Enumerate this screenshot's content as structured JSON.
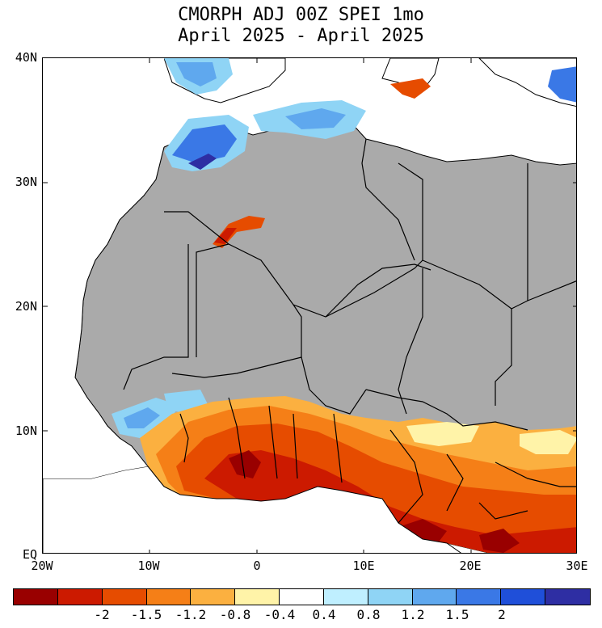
{
  "title": {
    "line1": "CMORPH ADJ 00Z SPEI 1mo",
    "line2": "April 2025 - April 2025"
  },
  "axes": {
    "lat_labels": [
      "40N",
      "30N",
      "20N",
      "10N",
      "EQ"
    ],
    "lon_labels": [
      "20W",
      "10W",
      "0",
      "10E",
      "20E",
      "30E"
    ]
  },
  "map": {
    "extent": {
      "lon_min": -20,
      "lon_max": 30,
      "lat_min": 0,
      "lat_max": 40
    },
    "land_color": "#aaaaaa",
    "ocean_color": "#ffffff",
    "border_color": "#000000"
  },
  "colorbar": {
    "colors": [
      "#990000",
      "#cc1a00",
      "#e64c00",
      "#f57f17",
      "#fbb040",
      "#fff3a8",
      "#ffffff",
      "#bfefff",
      "#8fd4f5",
      "#5fa8ee",
      "#3a78e6",
      "#1f4fd9",
      "#2e2ea3"
    ],
    "labels": [
      "-2",
      "-1.5",
      "-1.2",
      "-0.8",
      "-0.4",
      "0.4",
      "0.8",
      "1.2",
      "1.5",
      "2"
    ]
  }
}
